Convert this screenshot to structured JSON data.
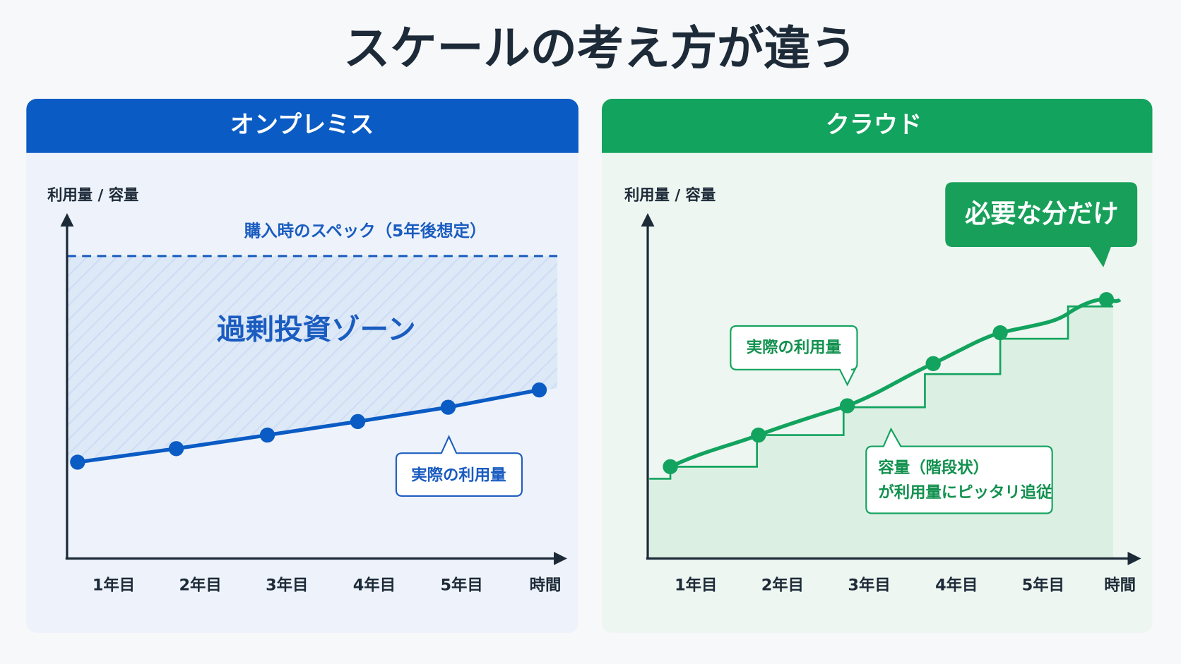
{
  "title": "スケールの考え方が違う",
  "left": {
    "header": "オンプレミス",
    "y_axis": "利用量 / 容量",
    "spec_label": "購入時のスペック（5年後想定）",
    "zone_label": "過剰投資ゾーン",
    "usage_label": "実際の利用量",
    "x_labels": [
      "1年目",
      "2年目",
      "3年目",
      "4年目",
      "5年目",
      "時間"
    ]
  },
  "right": {
    "header": "クラウド",
    "y_axis": "利用量 / 容量",
    "callout": "必要な分だけ",
    "usage_label": "実際の利用量",
    "capacity_label": [
      "容量（階段状）",
      "が利用量にピッタリ追従"
    ],
    "x_labels": [
      "1年目",
      "2年目",
      "3年目",
      "4年目",
      "5年目",
      "時間"
    ]
  }
}
